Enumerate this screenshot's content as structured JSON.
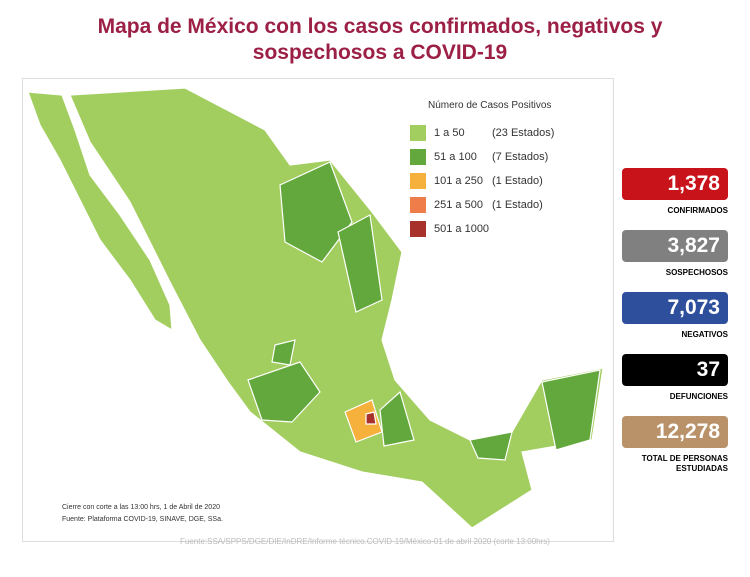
{
  "header": {
    "title": "Mapa de México con los casos confirmados, negativos y sospechosos a COVID-19"
  },
  "legend": {
    "title": "Número de Casos Positivos",
    "items": [
      {
        "label": "1 a  50",
        "note": "(23 Estados)",
        "color": "#a2cd5f"
      },
      {
        "label": "51 a  100",
        "note": "(7 Estados)",
        "color": "#63a83c"
      },
      {
        "label": "101 a  250",
        "note": "(1 Estado)",
        "color": "#f6b13d"
      },
      {
        "label": "251 a  500",
        "note": "(1 Estado)",
        "color": "#ef7d49"
      },
      {
        "label": "501 a 1000",
        "color": "#a8322b"
      }
    ]
  },
  "stats": [
    {
      "value": "1,378",
      "label": "CONFIRMADOS",
      "color": "#c8131b"
    },
    {
      "value": "3,827",
      "label": "SOSPECHOSOS",
      "color": "#808080"
    },
    {
      "value": "7,073",
      "label": "NEGATIVOS",
      "color": "#2d4f9c"
    },
    {
      "value": "37",
      "label": "DEFUNCIONES",
      "color": "#000000"
    },
    {
      "value": "12,278",
      "label": "TOTAL DE PERSONAS ESTUDIADAS",
      "color": "#b9926a"
    }
  ],
  "footnotes": [
    "Cierre con corte a las 13:00 hrs, 1 de Abril de 2020",
    "Fuente: Plataforma COVID-19, SINAVE, DGE, SSa."
  ],
  "source": "Fuente:SSA/SPPS/DGE/DIE/InDRE/Informe técnico.COVID-19/México-01 de abril 2020 (corte 13:00hrs)"
}
